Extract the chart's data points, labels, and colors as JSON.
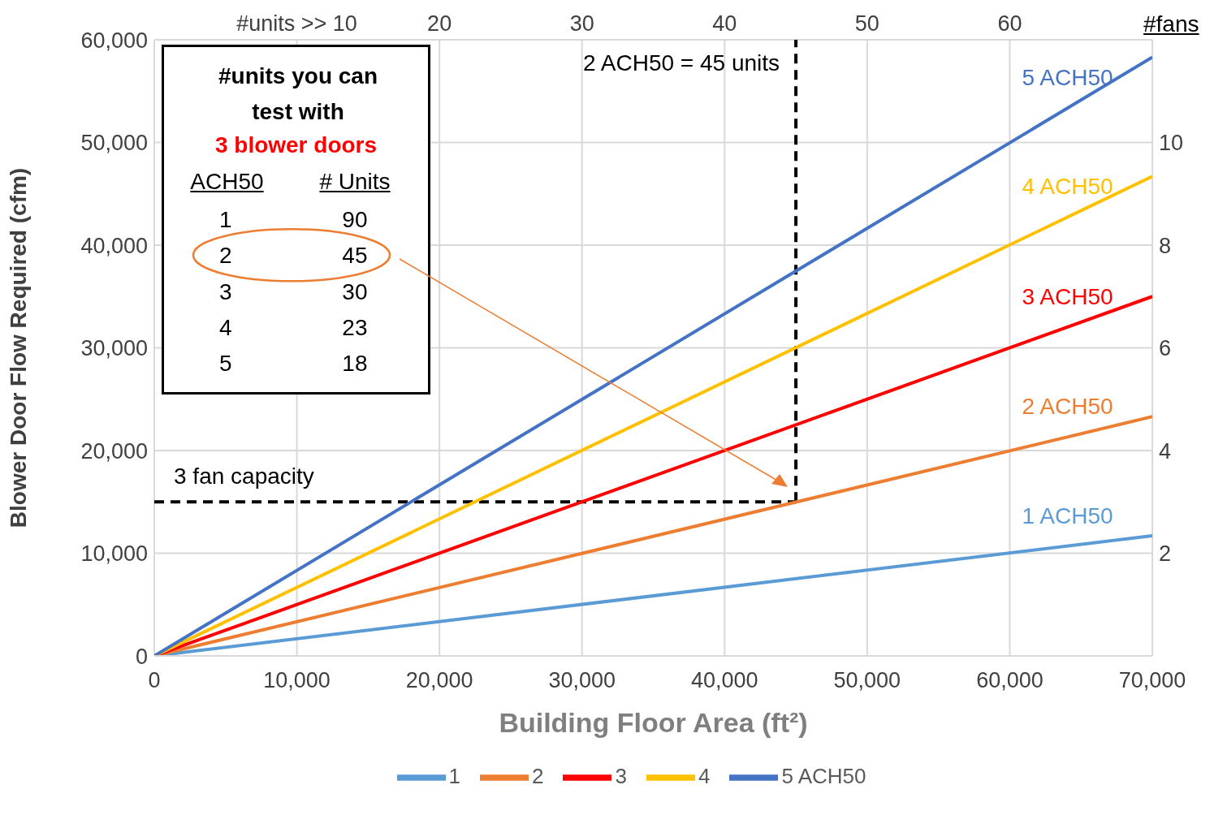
{
  "chart_data": {
    "type": "line",
    "xlabel": "Building Floor Area (ft²)",
    "ylabel": "Blower Door Flow Required (cfm)",
    "y2label": "#fans",
    "x": [
      0,
      70000
    ],
    "series": [
      {
        "name": "1",
        "color": "#5b9bd5",
        "values": [
          0,
          11700
        ]
      },
      {
        "name": "2",
        "color": "#ed7d31",
        "values": [
          0,
          23300
        ]
      },
      {
        "name": "3",
        "color": "#ff0000",
        "values": [
          0,
          35000
        ]
      },
      {
        "name": "4",
        "color": "#ffc000",
        "values": [
          0,
          46700
        ]
      },
      {
        "name": "5 ACH50",
        "color": "#4472c4",
        "values": [
          0,
          58300
        ]
      }
    ],
    "xlim": [
      0,
      70000
    ],
    "xticks": [
      0,
      {
        "value": 10000,
        "label": "10,000"
      },
      {
        "value": 20000,
        "label": "20,000"
      },
      {
        "value": 30000,
        "label": "30,000"
      },
      {
        "value": 40000,
        "label": "40,000"
      },
      {
        "value": 50000,
        "label": "50,000"
      },
      {
        "value": 60000,
        "label": "60,000"
      },
      {
        "value": 70000,
        "label": "70,000"
      }
    ],
    "ylim": [
      0,
      60000
    ],
    "yticks": [
      0,
      {
        "value": 10000,
        "label": "10,000"
      },
      {
        "value": 20000,
        "label": "20,000"
      },
      {
        "value": 30000,
        "label": "30,000"
      },
      {
        "value": 40000,
        "label": "40,000"
      },
      {
        "value": 50000,
        "label": "50,000"
      },
      {
        "value": 60000,
        "label": "60,000"
      }
    ],
    "x2lim": [
      0,
      70
    ],
    "x2ticks": [
      {
        "value": 10,
        "label": "#units >> 10"
      },
      20,
      30,
      40,
      50,
      60
    ],
    "y2lim": [
      0,
      12
    ],
    "y2ticks": [
      2,
      4,
      6,
      8,
      10
    ],
    "ref_lines": [
      {
        "axis": "x2",
        "value": 45,
        "label": "2 ACH50 = 45 units",
        "color": "#000000",
        "line_style": "dashed"
      },
      {
        "axis": "y",
        "value": 15000,
        "label": "3 fan capacity",
        "color": "#000000",
        "line_style": "dashed"
      }
    ],
    "annotations": [
      "#units you can test with",
      "3 blower doors",
      "ACH50",
      "# Units",
      "1 90",
      "2 45",
      "3 30",
      "4 23",
      "5 18",
      "1 ACH50",
      "2 ACH50",
      "3 ACH50",
      "4 ACH50",
      "5 ACH50"
    ],
    "grid": true,
    "legend": "bottom",
    "marker": "none",
    "line_style": "solid"
  }
}
